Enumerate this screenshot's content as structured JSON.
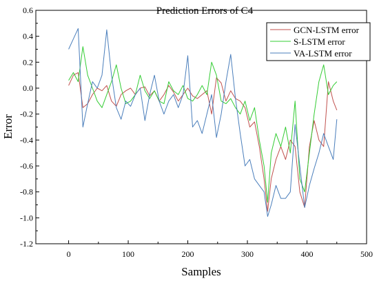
{
  "chart_data": {
    "type": "line",
    "title": "Prediction Errors of C4",
    "xlabel": "Samples",
    "ylabel": "Error",
    "xlim": [
      -55,
      500
    ],
    "ylim": [
      -1.2,
      0.6
    ],
    "xticks": [
      "0",
      "100",
      "200",
      "300",
      "400",
      "500"
    ],
    "yticks": [
      "0.6",
      "0.4",
      "0.2",
      "0.0",
      "-0.2",
      "-0.4",
      "-0.6",
      "-0.8",
      "-1.0",
      "-1.2"
    ],
    "grid": false,
    "legend_position": "top-right",
    "series": [
      {
        "name": "GCN-LSTM error",
        "color": "#c0504d",
        "x": [
          0,
          8,
          16,
          24,
          32,
          40,
          48,
          56,
          64,
          72,
          80,
          88,
          96,
          104,
          112,
          120,
          128,
          136,
          144,
          152,
          160,
          168,
          176,
          184,
          192,
          200,
          208,
          216,
          224,
          232,
          240,
          248,
          256,
          264,
          272,
          280,
          288,
          296,
          304,
          312,
          320,
          328,
          334,
          340,
          348,
          356,
          364,
          372,
          380,
          388,
          396,
          404,
          412,
          420,
          428,
          436,
          444,
          450
        ],
        "y": [
          0.02,
          0.1,
          0.12,
          -0.15,
          -0.12,
          -0.05,
          0.0,
          -0.02,
          0.02,
          -0.1,
          -0.14,
          -0.05,
          -0.02,
          0.0,
          -0.05,
          0.0,
          0.01,
          -0.06,
          -0.02,
          -0.1,
          -0.05,
          0.02,
          -0.03,
          -0.1,
          -0.05,
          0.0,
          -0.06,
          -0.08,
          -0.05,
          -0.02,
          -0.2,
          0.08,
          0.04,
          -0.1,
          -0.02,
          -0.08,
          -0.1,
          -0.15,
          -0.3,
          -0.26,
          -0.45,
          -0.7,
          -0.95,
          -0.7,
          -0.55,
          -0.45,
          -0.55,
          -0.4,
          -0.45,
          -0.8,
          -0.92,
          -0.45,
          -0.25,
          -0.4,
          -0.45,
          0.05,
          -0.1,
          -0.17
        ]
      },
      {
        "name": "S-LSTM error",
        "color": "#33cc33",
        "x": [
          0,
          8,
          16,
          24,
          32,
          40,
          48,
          56,
          64,
          72,
          80,
          88,
          96,
          104,
          112,
          120,
          128,
          136,
          144,
          152,
          160,
          168,
          176,
          184,
          192,
          200,
          208,
          216,
          224,
          232,
          240,
          248,
          256,
          264,
          272,
          280,
          288,
          296,
          304,
          312,
          320,
          328,
          334,
          340,
          348,
          356,
          364,
          372,
          380,
          388,
          396,
          404,
          412,
          420,
          428,
          436,
          444,
          450
        ],
        "y": [
          0.06,
          0.12,
          0.05,
          0.32,
          0.1,
          0.0,
          -0.1,
          -0.15,
          -0.05,
          0.05,
          0.18,
          0.0,
          -0.12,
          -0.1,
          -0.05,
          0.1,
          -0.02,
          -0.08,
          -0.02,
          -0.1,
          -0.12,
          0.05,
          -0.02,
          -0.05,
          0.02,
          -0.08,
          -0.1,
          -0.05,
          0.02,
          -0.05,
          0.2,
          0.1,
          -0.1,
          -0.12,
          -0.08,
          -0.15,
          -0.2,
          -0.1,
          -0.25,
          -0.15,
          -0.4,
          -0.6,
          -0.88,
          -0.5,
          -0.35,
          -0.45,
          -0.3,
          -0.5,
          -0.1,
          -0.7,
          -0.8,
          -0.5,
          -0.2,
          0.05,
          0.18,
          -0.05,
          0.02,
          0.05
        ]
      },
      {
        "name": "VA-LSTM error",
        "color": "#4a7ebb",
        "x": [
          0,
          8,
          16,
          24,
          32,
          40,
          48,
          56,
          64,
          72,
          80,
          88,
          96,
          104,
          112,
          120,
          128,
          136,
          144,
          152,
          160,
          168,
          176,
          184,
          192,
          200,
          208,
          216,
          224,
          232,
          240,
          248,
          256,
          264,
          272,
          280,
          288,
          296,
          304,
          312,
          320,
          328,
          334,
          340,
          348,
          356,
          364,
          372,
          380,
          388,
          396,
          404,
          412,
          420,
          428,
          436,
          444,
          450
        ],
        "y": [
          0.3,
          0.38,
          0.46,
          -0.3,
          -0.12,
          0.05,
          0.0,
          0.1,
          0.45,
          0.1,
          -0.15,
          -0.24,
          -0.1,
          -0.14,
          -0.05,
          0.0,
          -0.25,
          -0.05,
          0.1,
          -0.1,
          -0.2,
          -0.1,
          -0.05,
          -0.15,
          -0.05,
          0.25,
          -0.3,
          -0.25,
          -0.35,
          -0.2,
          -0.05,
          -0.38,
          -0.2,
          0.05,
          0.26,
          -0.08,
          -0.35,
          -0.6,
          -0.55,
          -0.7,
          -0.75,
          -0.8,
          -0.99,
          -0.9,
          -0.75,
          -0.85,
          -0.85,
          -0.8,
          -0.28,
          -0.6,
          -0.92,
          -0.75,
          -0.62,
          -0.5,
          -0.35,
          -0.45,
          -0.55,
          -0.24
        ]
      }
    ]
  }
}
